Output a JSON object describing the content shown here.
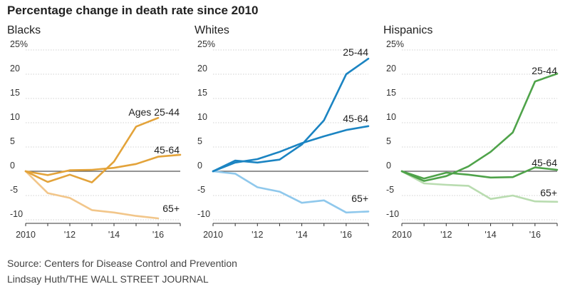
{
  "title": "Percentage change in death rate since 2010",
  "footer": {
    "source": "Source: Centers for Disease Control and Prevention",
    "credit": "Lindsay Huth/THE WALL STREET JOURNAL"
  },
  "chart_data": [
    {
      "type": "line",
      "title": "Blacks",
      "x": [
        2010,
        2011,
        2012,
        2013,
        2014,
        2015,
        2016,
        2017
      ],
      "xtick_labels": [
        "2010",
        "'12",
        "'14",
        "'16"
      ],
      "xtick_values": [
        2010,
        2012,
        2014,
        2016
      ],
      "ytick_labels": [
        "25%",
        "20",
        "15",
        "10",
        "5",
        "0",
        "-5",
        "-10"
      ],
      "ytick_values": [
        25,
        20,
        15,
        10,
        5,
        0,
        -5,
        -10
      ],
      "ylim": [
        -10,
        25
      ],
      "series": [
        {
          "name": "Ages 25-44",
          "label": "Ages 25-44",
          "color": "#e3a33a",
          "values": [
            0,
            -2.2,
            -0.7,
            -2.3,
            2.0,
            9.2,
            11.0,
            null
          ]
        },
        {
          "name": "45-64",
          "label": "45-64",
          "color": "#e3a33a",
          "values": [
            0,
            -0.8,
            0.2,
            0.3,
            0.7,
            1.5,
            3.0,
            3.4
          ]
        },
        {
          "name": "65+",
          "label": "65+",
          "color": "#f2c68a",
          "values": [
            0,
            -4.5,
            -5.5,
            -8.0,
            -8.5,
            -9.2,
            -9.7,
            null
          ]
        }
      ]
    },
    {
      "type": "line",
      "title": "Whites",
      "x": [
        2010,
        2011,
        2012,
        2013,
        2014,
        2015,
        2016,
        2017
      ],
      "xtick_labels": [
        "2010",
        "'12",
        "'14",
        "'16"
      ],
      "xtick_values": [
        2010,
        2012,
        2014,
        2016
      ],
      "ytick_labels": [
        "25%",
        "20",
        "15",
        "10",
        "5",
        "0",
        "-5",
        "-10"
      ],
      "ytick_values": [
        25,
        20,
        15,
        10,
        5,
        0,
        -5,
        -10
      ],
      "ylim": [
        -10,
        25
      ],
      "series": [
        {
          "name": "25-44",
          "label": "25-44",
          "color": "#1b84c2",
          "values": [
            0,
            2.2,
            1.8,
            2.4,
            5.5,
            10.5,
            20.0,
            23.2
          ]
        },
        {
          "name": "45-64",
          "label": "45-64",
          "color": "#1b84c2",
          "values": [
            0,
            1.8,
            2.5,
            4.0,
            5.8,
            7.2,
            8.5,
            9.3
          ]
        },
        {
          "name": "65+",
          "label": "65+",
          "color": "#8fc8ec",
          "values": [
            0,
            -0.5,
            -3.3,
            -4.2,
            -6.5,
            -6.0,
            -8.5,
            -8.3
          ]
        }
      ]
    },
    {
      "type": "line",
      "title": "Hispanics",
      "x": [
        2010,
        2011,
        2012,
        2013,
        2014,
        2015,
        2016,
        2017
      ],
      "xtick_labels": [
        "2010",
        "'12",
        "'14",
        "'16"
      ],
      "xtick_values": [
        2010,
        2012,
        2014,
        2016
      ],
      "ytick_labels": [
        "25%",
        "20",
        "15",
        "10",
        "5",
        "0",
        "-5",
        "-10"
      ],
      "ytick_values": [
        25,
        20,
        15,
        10,
        5,
        0,
        -5,
        -10
      ],
      "ylim": [
        -10,
        25
      ],
      "series": [
        {
          "name": "25-44",
          "label": "25-44",
          "color": "#4fa34a",
          "values": [
            0,
            -2.0,
            -1.0,
            1.0,
            4.0,
            8.0,
            18.5,
            20.1
          ]
        },
        {
          "name": "45-64",
          "label": "45-64",
          "color": "#4fa34a",
          "values": [
            0,
            -1.5,
            -0.3,
            -0.7,
            -1.3,
            -1.2,
            0.8,
            0.3
          ]
        },
        {
          "name": "65+",
          "label": "65+",
          "color": "#b9dcb0",
          "values": [
            0,
            -2.5,
            -2.8,
            -3.0,
            -5.7,
            -5.0,
            -6.2,
            -6.3
          ]
        }
      ]
    }
  ]
}
